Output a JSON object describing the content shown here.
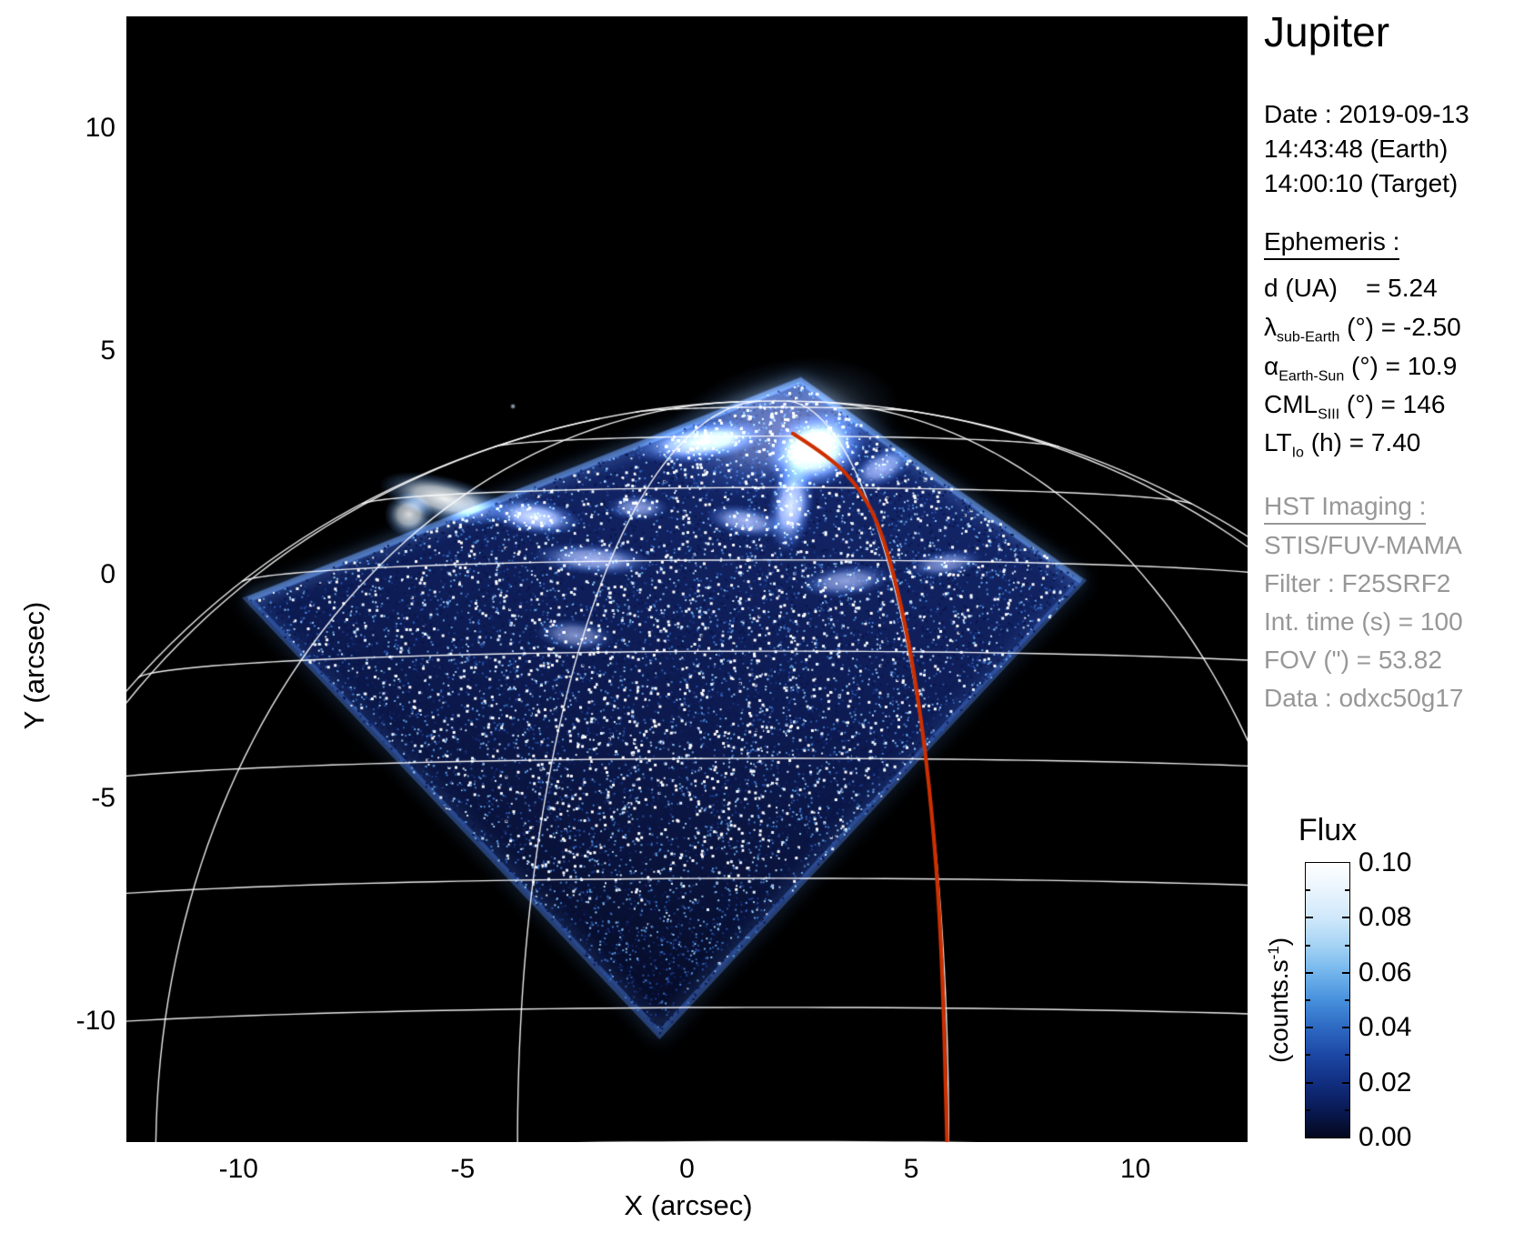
{
  "title": "Jupiter",
  "info_panel": {
    "text_color": "#000000",
    "grey_color": "#979797",
    "date_line1": "Date : 2019-09-13",
    "date_line2": "14:43:48 (Earth)",
    "date_line3": "14:00:10 (Target)",
    "ephemeris_heading": "Ephemeris :",
    "ephemeris_rows": [
      {
        "sym": "d",
        "sub": "",
        "rest": " (UA)    = 5.24"
      },
      {
        "sym": "λ",
        "sub": "sub-Earth",
        "rest": " (°) = -2.50"
      },
      {
        "sym": "α",
        "sub": "Earth-Sun",
        "rest": " (°) = 10.9"
      },
      {
        "sym": "CML",
        "sub": "SIII",
        "rest": " (°) = 146"
      },
      {
        "sym": "LT",
        "sub": "Io",
        "rest": " (h) = 7.40"
      }
    ],
    "hst_heading": "HST Imaging :",
    "hst_rows": [
      "STIS/FUV-MAMA",
      "Filter : F25SRF2",
      "Int. time (s) = 100",
      "FOV (\") = 53.82",
      "Data : odxc50g17"
    ]
  },
  "axes": {
    "x_label": "X (arcsec)",
    "y_label": "Y (arcsec)",
    "x_ticks": [
      -10,
      -5,
      0,
      5,
      10
    ],
    "y_ticks": [
      10,
      5,
      0,
      -5,
      -10
    ]
  },
  "colorbar": {
    "title": "Flux",
    "unit_prefix": "(counts.s",
    "unit_sup": "-1",
    "unit_suffix": ")",
    "ticks": [
      "0.10",
      "0.08",
      "0.06",
      "0.04",
      "0.02",
      "0.00"
    ],
    "gradient": [
      "#ffffff",
      "#e9f4fd",
      "#cfe8fa",
      "#a5d3f4",
      "#72b5ec",
      "#4790dc",
      "#2d69c2",
      "#1c47a4",
      "#112e81",
      "#091a54",
      "#04071c"
    ]
  },
  "chart_data": {
    "type": "heatmap",
    "title": "Jupiter",
    "xlabel": "X (arcsec)",
    "ylabel": "Y (arcsec)",
    "xlim": [
      -12.5,
      12.5
    ],
    "ylim": [
      -12.7,
      12.5
    ],
    "x_ticks": [
      -10,
      -5,
      0,
      5,
      10
    ],
    "y_ticks": [
      10,
      5,
      0,
      -5,
      -10
    ],
    "grid": false,
    "legend": "none",
    "background": "#000000",
    "colorbar": {
      "title": "Flux",
      "unit": "counts/s",
      "min": 0.0,
      "max": 0.1,
      "tick_values": [
        0.1,
        0.08,
        0.06,
        0.04,
        0.02,
        0.0
      ],
      "position": "right"
    },
    "description": "HST/STIS far-ultraviolet image (F25SRF2) of Jupiter's northern aurora on 2019-09-13. Bright auroral oval emission inside a diamond-shaped STIS field of view of blue counting noise; white planetary latitude/longitude graticule and limb; red magnetic meridian track through the auroral hot spot.",
    "fov_quad_arcsec": [
      [
        2.53,
        4.34
      ],
      [
        8.79,
        -0.14
      ],
      [
        -0.61,
        -10.28
      ],
      [
        -9.78,
        -0.55
      ]
    ],
    "graticule": {
      "planet_center": [
        2.0,
        -13.5
      ],
      "radius": 18.6,
      "flattening": 0.065,
      "subobs_lat": -2.5,
      "cml": 146,
      "parallels": [
        0,
        10,
        20,
        30,
        40,
        50,
        60,
        70,
        80
      ],
      "meridians_rel": [
        -108.1,
        -78.1,
        -48.1,
        -18.1,
        11.9,
        41.9,
        71.9
      ],
      "color": "#ffffff"
    },
    "red_track_arcsec": [
      [
        2.36,
        3.16
      ],
      [
        3.23,
        2.61
      ],
      [
        3.88,
        1.89
      ],
      [
        4.3,
        1.08
      ],
      [
        4.71,
        -0.35
      ],
      [
        5.07,
        -2.18
      ],
      [
        5.35,
        -4.22
      ],
      [
        5.56,
        -6.46
      ],
      [
        5.7,
        -8.9
      ],
      [
        5.8,
        -12.69
      ]
    ],
    "red_color": "#cd2f00",
    "aurora_blobs": [
      {
        "x": 2.1,
        "y": 3.3,
        "rx": 2.7,
        "ry": 1.5,
        "rot": -14,
        "i": 0.38
      },
      {
        "x": 2.87,
        "y": 2.77,
        "rx": 1.15,
        "ry": 0.85,
        "rot": -20,
        "i": 1.0
      },
      {
        "x": 2.32,
        "y": 1.55,
        "rx": 0.5,
        "ry": 1.05,
        "rot": 8,
        "i": 0.8
      },
      {
        "x": 0.3,
        "y": 2.97,
        "rx": 1.5,
        "ry": 0.45,
        "rot": -8,
        "i": 0.85
      },
      {
        "x": 4.34,
        "y": 2.4,
        "rx": 0.75,
        "ry": 0.4,
        "rot": -25,
        "i": 0.6
      },
      {
        "x": -5.4,
        "y": 1.7,
        "rx": 1.5,
        "ry": 0.5,
        "rot": 14,
        "i": 0.95
      },
      {
        "x": -6.2,
        "y": 1.35,
        "rx": 0.55,
        "ry": 0.5,
        "rot": 0,
        "i": 0.85
      },
      {
        "x": -3.4,
        "y": 1.3,
        "rx": 1.05,
        "ry": 0.4,
        "rot": 8,
        "i": 0.8
      },
      {
        "x": -2.1,
        "y": 0.35,
        "rx": 1.35,
        "ry": 0.36,
        "rot": 4,
        "i": 0.6
      },
      {
        "x": 1.3,
        "y": 1.2,
        "rx": 0.9,
        "ry": 0.35,
        "rot": 10,
        "i": 0.6
      },
      {
        "x": 3.54,
        "y": -0.14,
        "rx": 1.05,
        "ry": 0.36,
        "rot": -6,
        "i": 0.5
      },
      {
        "x": 5.75,
        "y": 0.25,
        "rx": 0.85,
        "ry": 0.3,
        "rot": -8,
        "i": 0.45
      },
      {
        "x": -2.5,
        "y": -1.35,
        "rx": 0.9,
        "ry": 0.36,
        "rot": 6,
        "i": 0.45
      },
      {
        "x": -1.1,
        "y": 1.5,
        "rx": 0.7,
        "ry": 0.3,
        "rot": 0,
        "i": 0.5
      },
      {
        "x": -3.88,
        "y": 3.77,
        "rx": 0.07,
        "ry": 0.07,
        "rot": 0,
        "i": 0.7
      }
    ],
    "noise": {
      "seed": 7,
      "count": 42000,
      "density": 0.62
    }
  }
}
